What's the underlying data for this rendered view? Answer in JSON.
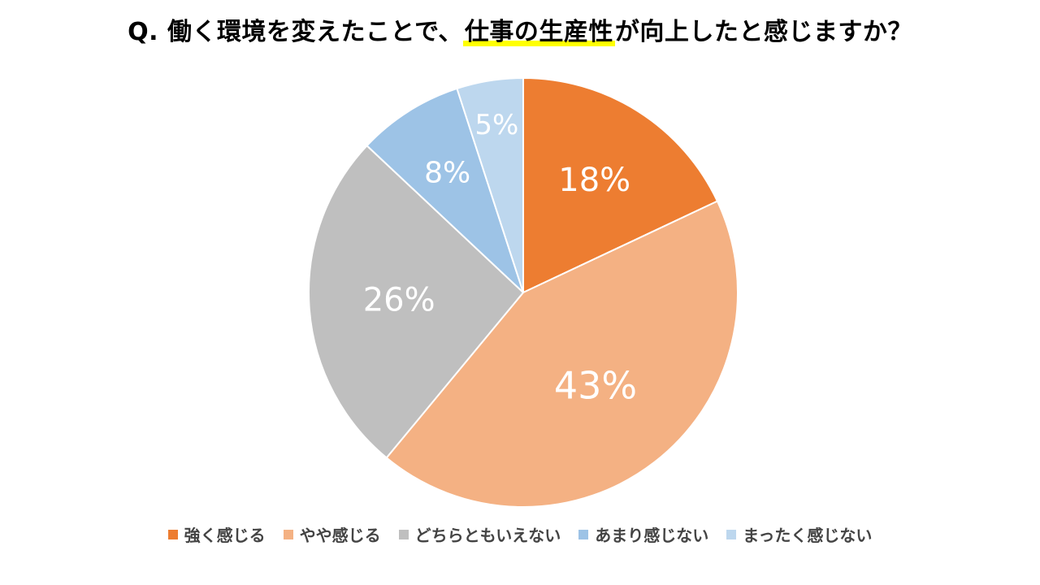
{
  "title": {
    "prefix": "Q. 働く環境を変えたことで、",
    "highlight": "仕事の生産性",
    "suffix": "が向上したと感じますか？"
  },
  "chart_data": {
    "type": "pie",
    "start_angle_deg": 0,
    "direction": "clockwise",
    "legend_position": "bottom",
    "slices": [
      {
        "label": "強く感じる",
        "value": 18,
        "display": "18%",
        "color": "#ED7D31"
      },
      {
        "label": "やや感じる",
        "value": 43,
        "display": "43%",
        "color": "#F4B183"
      },
      {
        "label": "どちらともいえない",
        "value": 26,
        "display": "26%",
        "color": "#BFBFBF"
      },
      {
        "label": "あまり感じない",
        "value": 8,
        "display": "8%",
        "color": "#9DC3E6"
      },
      {
        "label": "まったく感じない",
        "value": 5,
        "display": "5%",
        "color": "#BDD7EE"
      }
    ]
  }
}
